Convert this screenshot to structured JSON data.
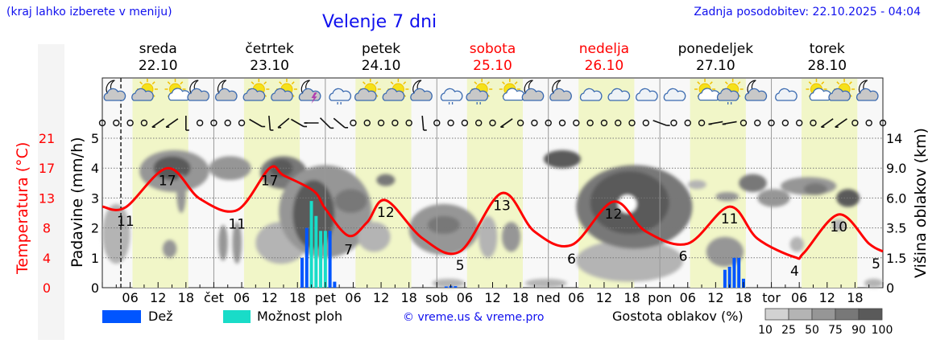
{
  "header": {
    "menu_hint": "(kraj lahko izberete v meniju)",
    "title": "Velenje 7 dni",
    "updated": "Zadnja posodobitev: 22.10.2025 - 04:04"
  },
  "days": [
    {
      "name": "sreda",
      "date": "22.10",
      "weekend": false
    },
    {
      "name": "četrtek",
      "date": "23.10",
      "weekend": false
    },
    {
      "name": "petek",
      "date": "24.10",
      "weekend": false
    },
    {
      "name": "sobota",
      "date": "25.10",
      "weekend": true
    },
    {
      "name": "nedelja",
      "date": "26.10",
      "weekend": true
    },
    {
      "name": "ponedeljek",
      "date": "27.10",
      "weekend": false
    },
    {
      "name": "torek",
      "date": "28.10",
      "weekend": false
    }
  ],
  "axes": {
    "left_temp_label": "Temperatura (°C)",
    "left_temp_ticks": [
      "0",
      "4",
      "8",
      "13",
      "17",
      "21"
    ],
    "left_precip_label": "Padavine (mm/h)",
    "left_precip_ticks": [
      "0",
      "1",
      "2",
      "3",
      "4",
      "5"
    ],
    "right_label": "Višina oblakov (km)",
    "right_ticks": [
      "0",
      "1.5",
      "3.5",
      "6.0",
      "9.0",
      "14"
    ],
    "x_day_abbr": [
      "",
      "čet",
      "pet",
      "sob",
      "ned",
      "pon",
      "tor"
    ],
    "x_hour_ticks": [
      "06",
      "12",
      "18"
    ]
  },
  "legend": {
    "rain": "Dež",
    "storm": "Možnost ploh",
    "credit": "© vreme.us & vreme.pro",
    "cloud_density": "Gostota oblakov (%)",
    "density_ticks": [
      "10",
      "25",
      "50",
      "75",
      "90",
      "100"
    ]
  },
  "colors": {
    "rain": "#0055ff",
    "storm": "#19dcc8",
    "temp": "#ff0000",
    "day_band": "#f1f6c8",
    "accent_blue": "#1010ee",
    "density": [
      "#d2d2d2",
      "#b4b4b4",
      "#969696",
      "#787878",
      "#5a5a5a"
    ]
  },
  "chart_data": {
    "type": "line",
    "title": "Velenje 7 dni",
    "x_unit": "hours since 22.10 00:00",
    "xlim": [
      0,
      168
    ],
    "now_hour": 4,
    "temperature": {
      "name": "Temperatura (°C)",
      "points": [
        [
          0,
          11.4
        ],
        [
          5,
          11.3
        ],
        [
          14,
          16.8
        ],
        [
          21,
          12.5
        ],
        [
          29,
          10.9
        ],
        [
          36,
          16.8
        ],
        [
          39,
          15.8
        ],
        [
          45.5,
          13.6
        ],
        [
          48,
          11.1
        ],
        [
          53,
          7.3
        ],
        [
          57,
          9.2
        ],
        [
          61,
          12.3
        ],
        [
          69,
          6.9
        ],
        [
          77,
          5.1
        ],
        [
          86,
          13.3
        ],
        [
          93,
          7.9
        ],
        [
          101,
          6.0
        ],
        [
          110,
          12.1
        ],
        [
          117,
          7.9
        ],
        [
          126,
          6.2
        ],
        [
          135,
          11.4
        ],
        [
          141,
          6.9
        ],
        [
          149,
          4.3
        ],
        [
          151,
          4.9
        ],
        [
          158.5,
          10.3
        ],
        [
          165,
          6.2
        ],
        [
          168,
          5.1
        ]
      ],
      "labels": [
        {
          "hour": 5,
          "value": "11",
          "kind": "min"
        },
        {
          "hour": 14,
          "value": "17",
          "kind": "max"
        },
        {
          "hour": 29,
          "value": "11",
          "kind": "min"
        },
        {
          "hour": 36,
          "value": "17",
          "kind": "max"
        },
        {
          "hour": 53,
          "value": "7",
          "kind": "min"
        },
        {
          "hour": 61,
          "value": "12",
          "kind": "max"
        },
        {
          "hour": 77,
          "value": "5",
          "kind": "min"
        },
        {
          "hour": 86,
          "value": "13",
          "kind": "max"
        },
        {
          "hour": 101,
          "value": "6",
          "kind": "min"
        },
        {
          "hour": 110,
          "value": "12",
          "kind": "max"
        },
        {
          "hour": 125,
          "value": "6",
          "kind": "min"
        },
        {
          "hour": 135,
          "value": "11",
          "kind": "max"
        },
        {
          "hour": 149,
          "value": "4",
          "kind": "min"
        },
        {
          "hour": 158.5,
          "value": "10",
          "kind": "max"
        },
        {
          "hour": 167.5,
          "value": "5",
          "kind": "min"
        }
      ]
    },
    "precipitation": {
      "name": "Padavine (mm/h)",
      "ylim": [
        0,
        5
      ],
      "bars": [
        {
          "hour": 43,
          "value": 1.0,
          "type": "rain"
        },
        {
          "hour": 44,
          "value": 2.0,
          "type": "rain"
        },
        {
          "hour": 45,
          "value": 2.9,
          "type": "storm"
        },
        {
          "hour": 46,
          "value": 2.4,
          "type": "storm"
        },
        {
          "hour": 47,
          "value": 1.9,
          "type": "storm"
        },
        {
          "hour": 48,
          "value": 1.9,
          "type": "storm"
        },
        {
          "hour": 49,
          "value": 1.9,
          "type": "rain"
        },
        {
          "hour": 50,
          "value": 0.2,
          "type": "rain"
        },
        {
          "hour": 74,
          "value": 0.04,
          "type": "rain"
        },
        {
          "hour": 75,
          "value": 0.06,
          "type": "rain"
        },
        {
          "hour": 76,
          "value": 0.05,
          "type": "rain"
        },
        {
          "hour": 134,
          "value": 0.6,
          "type": "rain"
        },
        {
          "hour": 135,
          "value": 0.7,
          "type": "rain"
        },
        {
          "hour": 136,
          "value": 1.0,
          "type": "rain"
        },
        {
          "hour": 137,
          "value": 1.0,
          "type": "rain"
        },
        {
          "hour": 138,
          "value": 0.3,
          "type": "rain"
        }
      ]
    },
    "clouds": [
      {
        "h0": 0,
        "h1": 6,
        "l0": 0.8,
        "l1": 2.8,
        "d": 25
      },
      {
        "h0": 8,
        "h1": 23,
        "l0": 3.2,
        "l1": 4.6,
        "d": 50
      },
      {
        "h0": 11,
        "h1": 19,
        "l0": 3.6,
        "l1": 4.4,
        "d": 90
      },
      {
        "h0": 13,
        "h1": 16,
        "l0": 1.0,
        "l1": 1.6,
        "d": 50
      },
      {
        "h0": 16,
        "h1": 18,
        "l0": 2.5,
        "l1": 3.8,
        "d": 50
      },
      {
        "h0": 25,
        "h1": 27,
        "l0": 0.9,
        "l1": 2.1,
        "d": 50
      },
      {
        "h0": 28,
        "h1": 30,
        "l0": 0.8,
        "l1": 2.2,
        "d": 50
      },
      {
        "h0": 23,
        "h1": 32,
        "l0": 3.6,
        "l1": 4.4,
        "d": 50
      },
      {
        "h0": 33,
        "h1": 44,
        "l0": 0.8,
        "l1": 2.2,
        "d": 40
      },
      {
        "h0": 34,
        "h1": 44,
        "l0": 3.3,
        "l1": 4.4,
        "d": 75
      },
      {
        "h0": 36,
        "h1": 41,
        "l0": 3.7,
        "l1": 4.3,
        "d": 90
      },
      {
        "h0": 38,
        "h1": 58,
        "l0": 1.0,
        "l1": 4.1,
        "d": 50
      },
      {
        "h0": 41,
        "h1": 50,
        "l0": 1.3,
        "l1": 3.6,
        "d": 90
      },
      {
        "h0": 50,
        "h1": 57,
        "l0": 2.5,
        "l1": 3.3,
        "d": 75
      },
      {
        "h0": 55,
        "h1": 62,
        "l0": 1.2,
        "l1": 2.2,
        "d": 40
      },
      {
        "h0": 59,
        "h1": 63,
        "l0": 3.4,
        "l1": 3.8,
        "d": 75
      },
      {
        "h0": 66,
        "h1": 81,
        "l0": 1.1,
        "l1": 2.8,
        "d": 50
      },
      {
        "h0": 70,
        "h1": 77,
        "l0": 1.8,
        "l1": 2.4,
        "d": 75
      },
      {
        "h0": 71,
        "h1": 78,
        "l0": 0.0,
        "l1": 0.3,
        "d": 25
      },
      {
        "h0": 81,
        "h1": 85,
        "l0": 1.0,
        "l1": 2.4,
        "d": 40
      },
      {
        "h0": 86,
        "h1": 90,
        "l0": 1.2,
        "l1": 2.2,
        "d": 50
      },
      {
        "h0": 91,
        "h1": 100,
        "l0": 0.0,
        "l1": 0.3,
        "d": 25
      },
      {
        "h0": 95,
        "h1": 103,
        "l0": 4.0,
        "l1": 4.6,
        "d": 90
      },
      {
        "h0": 102,
        "h1": 125,
        "l0": 0.2,
        "l1": 1.6,
        "d": 40
      },
      {
        "h0": 102,
        "h1": 127,
        "l0": 1.3,
        "l1": 4.1,
        "d": 75
      },
      {
        "h0": 105,
        "h1": 122,
        "l0": 1.8,
        "l1": 3.9,
        "d": 90
      },
      {
        "h0": 111,
        "h1": 115,
        "l0": 2.5,
        "l1": 3.1,
        "d": 10
      },
      {
        "h0": 126,
        "h1": 130,
        "l0": 3.3,
        "l1": 3.6,
        "d": 25
      },
      {
        "h0": 130,
        "h1": 138,
        "l0": 0.7,
        "l1": 1.7,
        "d": 50
      },
      {
        "h0": 132,
        "h1": 137,
        "l0": 2.9,
        "l1": 3.2,
        "d": 50
      },
      {
        "h0": 137,
        "h1": 143,
        "l0": 3.2,
        "l1": 3.8,
        "d": 75
      },
      {
        "h0": 141,
        "h1": 148,
        "l0": 2.7,
        "l1": 3.3,
        "d": 50
      },
      {
        "h0": 146,
        "h1": 158,
        "l0": 3.1,
        "l1": 3.7,
        "d": 50
      },
      {
        "h0": 151,
        "h1": 156,
        "l0": 3.1,
        "l1": 3.5,
        "d": 75
      },
      {
        "h0": 148,
        "h1": 151,
        "l0": 1.2,
        "l1": 1.7,
        "d": 40
      },
      {
        "h0": 158,
        "h1": 163,
        "l0": 2.7,
        "l1": 3.3,
        "d": 90
      },
      {
        "h0": 157,
        "h1": 160,
        "l0": 1.9,
        "l1": 2.3,
        "d": 25
      },
      {
        "h0": 164,
        "h1": 168,
        "l0": 0.0,
        "l1": 0.3,
        "d": 25
      }
    ],
    "weather_icons": [
      "moon-cloud",
      "sun-cloud",
      "sun-small-cloud",
      "moon-cloud",
      "moon-cloud",
      "sun-cloud",
      "sun-cloud",
      "moon-thunder",
      "cloud-rain",
      "sun-cloud",
      "sun-cloud",
      "moon-cloud",
      "cloud-rain",
      "sun-cloud-rain",
      "sun-small-cloud",
      "moon-cloud",
      "moon-cloud",
      "clouds",
      "clouds",
      "clouds",
      "clouds",
      "sun-small-cloud",
      "sun-cloud-rain",
      "moon-cloud",
      "clouds",
      "sun-small-cloud",
      "sun-cloud",
      "moon-cloud"
    ],
    "wind_every_3h": [
      null,
      null,
      null,
      null,
      35,
      35,
      90,
      null,
      null,
      null,
      null,
      150,
      95,
      40,
      150,
      0,
      135,
      140,
      null,
      null,
      null,
      null,
      null,
      95,
      null,
      null,
      null,
      null,
      null,
      35,
      null,
      null,
      null,
      null,
      null,
      null,
      null,
      null,
      null,
      null,
      160,
      null,
      null,
      null,
      10,
      10,
      null,
      null,
      null,
      null,
      null,
      null,
      35,
      35,
      null,
      null,
      null
    ]
  }
}
